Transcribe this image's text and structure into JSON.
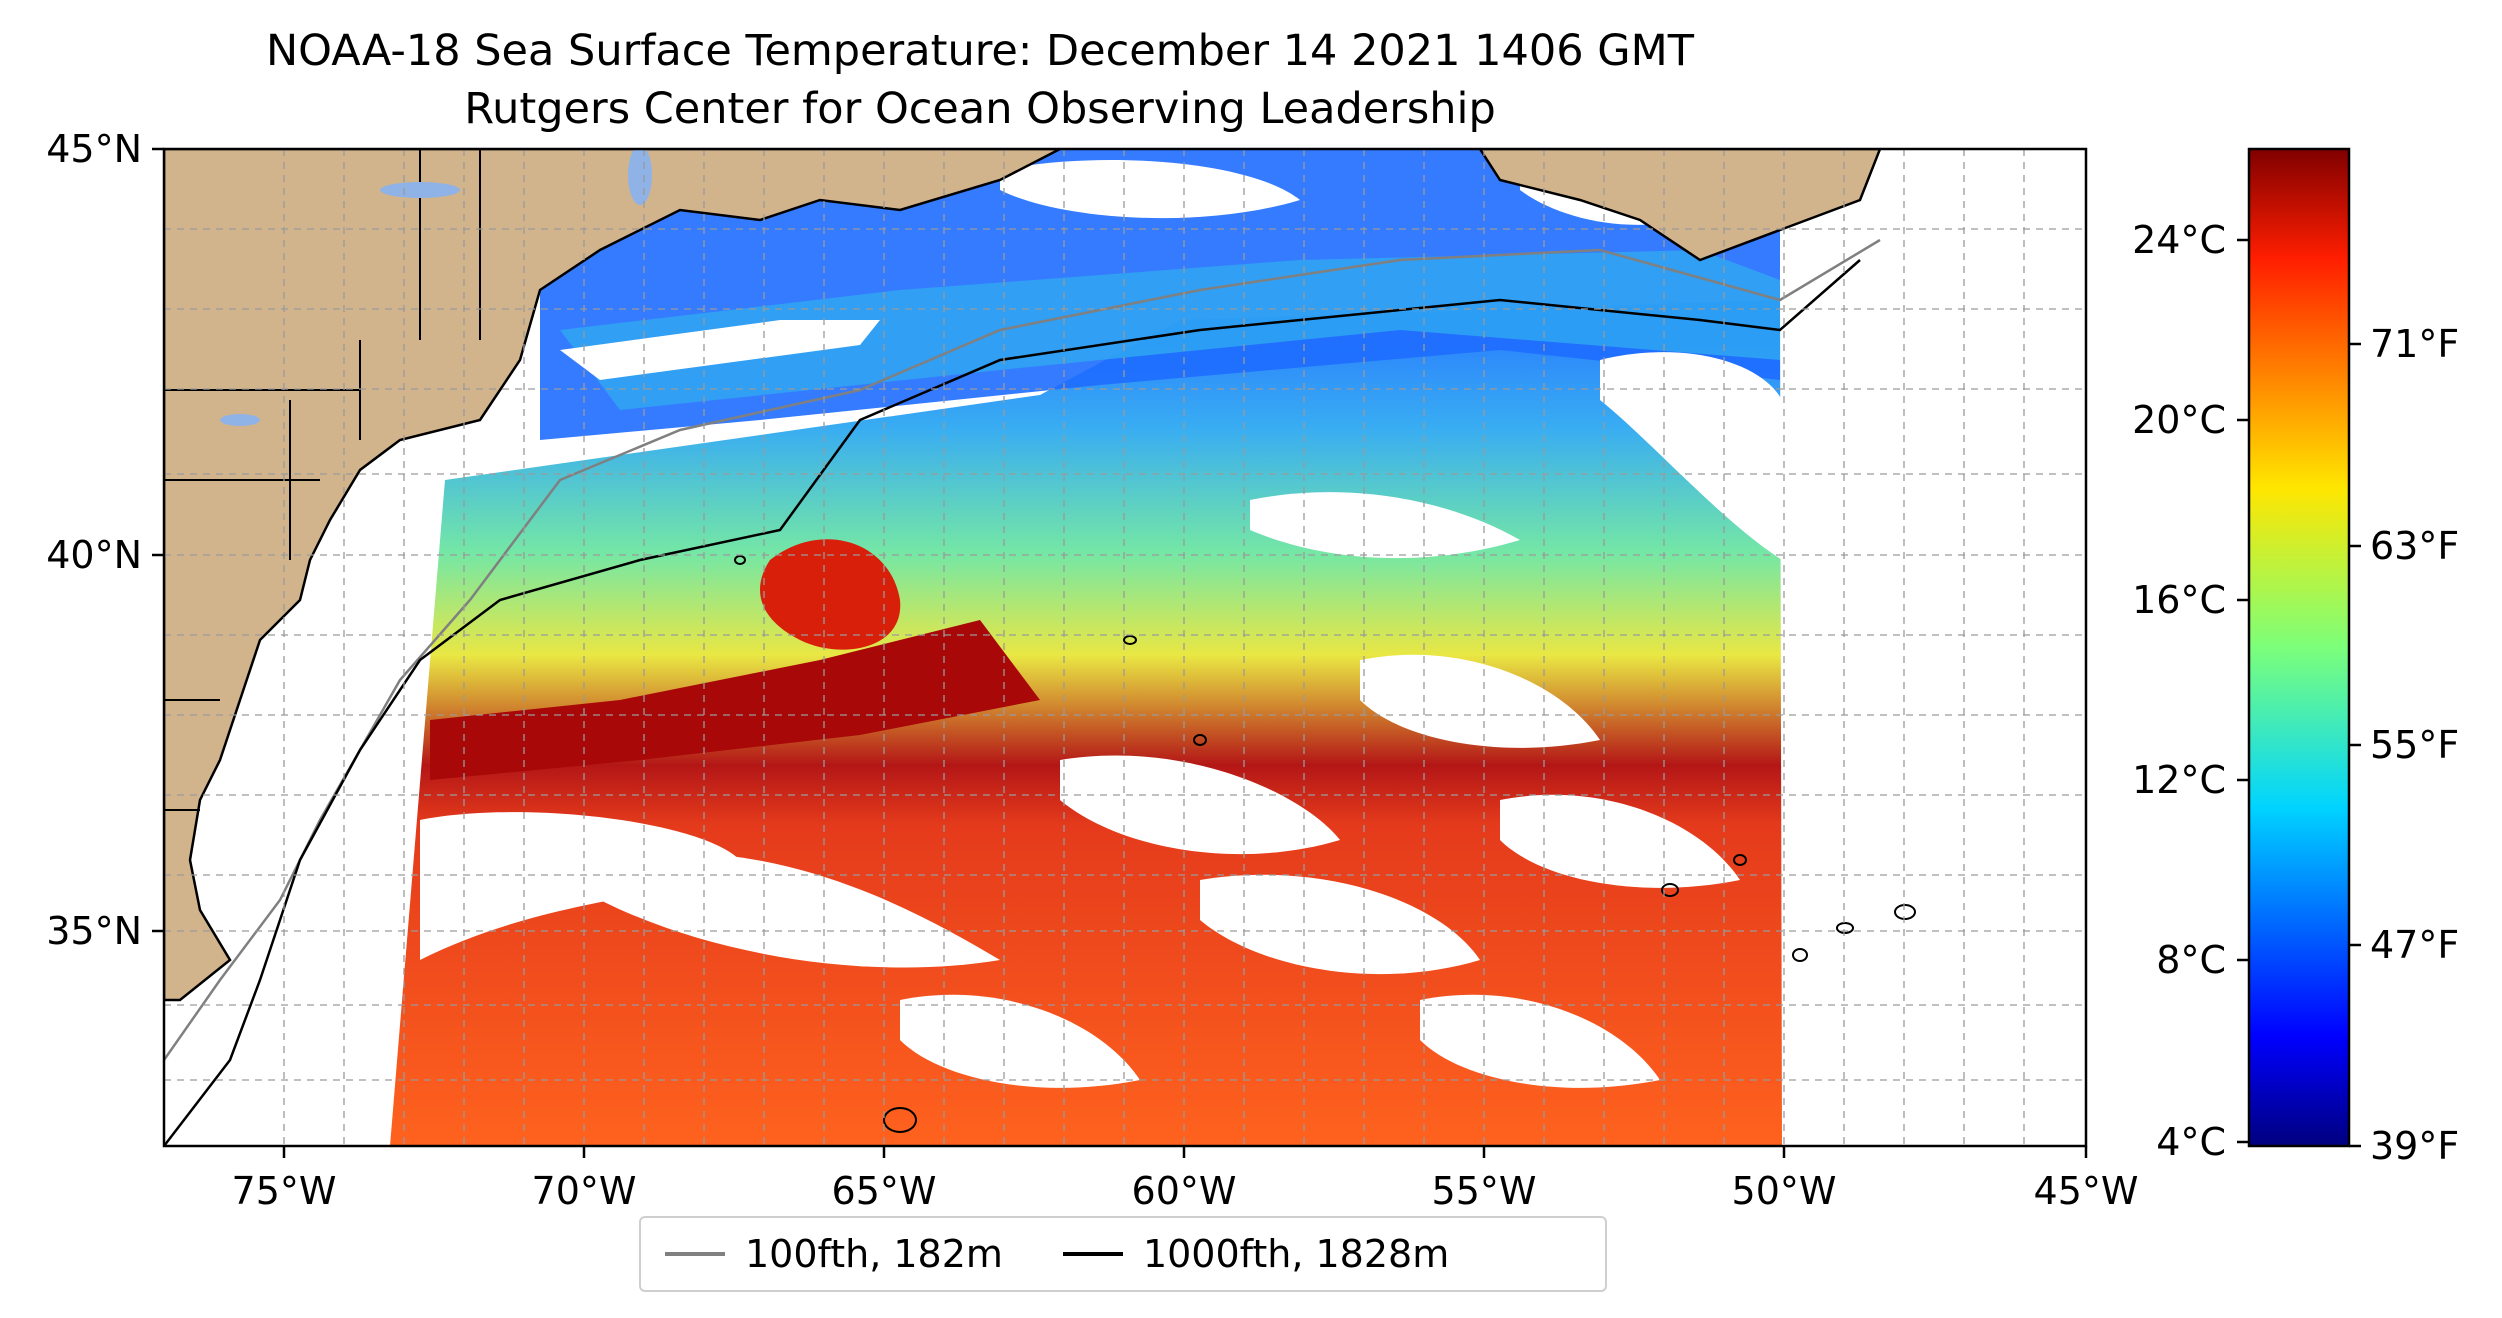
{
  "title": "NOAA-18 Sea Surface Temperature: December 14 2021 1406 GMT",
  "subtitle": "Rutgers Center for Ocean Observing Leadership",
  "map": {
    "lon_range": [
      -77,
      -45
    ],
    "lat_range": [
      32.5,
      45
    ],
    "lat_ticks": [
      "45°N",
      "40°N",
      "35°N"
    ],
    "lon_ticks": [
      "75°W",
      "70°W",
      "65°W",
      "60°W",
      "55°W",
      "50°W",
      "45°W"
    ],
    "land_color": "#d2b48c",
    "water_color": "#8fb3e6",
    "grid": true
  },
  "colorbar": {
    "colormap": "jet",
    "celsius_ticks": [
      "24°C",
      "20°C",
      "16°C",
      "12°C",
      "8°C",
      "4°C"
    ],
    "fahrenheit_ticks": [
      "71°F",
      "63°F",
      "55°F",
      "47°F",
      "39°F"
    ],
    "range_c": [
      3.9,
      25.8
    ]
  },
  "legend": {
    "items": [
      {
        "label": "100fth, 182m",
        "color": "#808080"
      },
      {
        "label": "1000fth, 1828m",
        "color": "#000000"
      }
    ]
  }
}
